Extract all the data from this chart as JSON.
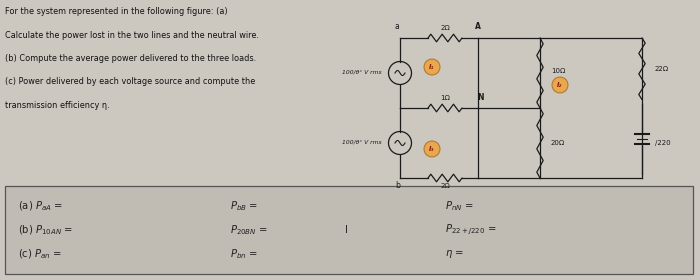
{
  "bg_color": "#ccc8c0",
  "text_color": "#111111",
  "title_lines": [
    "For the system represented in the following figure: (a)",
    "Calculate the power lost in the two lines and the neutral wire.",
    "(b) Compute the average power delivered to the three loads.",
    "(c) Power delivered by each voltage source and compute the",
    "transmission efficiency η."
  ],
  "vs1_label": "100/θ° V rms",
  "vs2_label": "100/θ° V rms",
  "r_top": "2Ω",
  "r_neutral": "1Ω",
  "r_bot": "2Ω",
  "r_10": "10Ω",
  "r_20": "20Ω",
  "r_22": "22Ω",
  "lbl_220": "/220",
  "node_a": "A",
  "node_n": "N",
  "node_a2": "a",
  "node_b": "b",
  "i1": "I₁",
  "i2": "I₂",
  "i3": "I₃",
  "box_bg": "#c8c4bc",
  "row1": [
    "(a) $P_{aA}$ =",
    "$P_{bB}$ =",
    "$P_{nN}$ ="
  ],
  "row2": [
    "(b) $P_{10AN}$ =",
    "$P_{20BN}$ =",
    "I",
    "$P_{22+j220}$ ="
  ],
  "row3": [
    "(c) $P_{an}$ =",
    "$P_{bn}$ =",
    "$\\eta$ ="
  ]
}
